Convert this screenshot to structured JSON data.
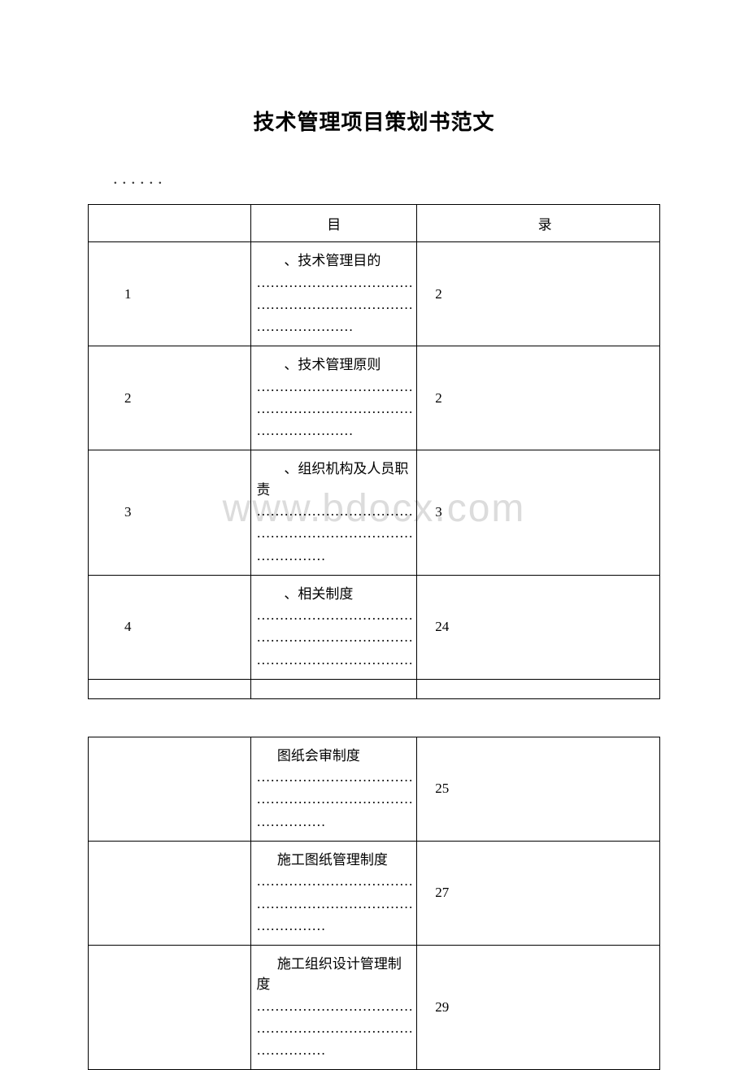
{
  "title": "技术管理项目策划书范文",
  "dots_header": "．．．．．．",
  "watermark": "www.bdocx.com",
  "table1": {
    "header": {
      "col2": "目",
      "col3": "录"
    },
    "rows": [
      {
        "num": "1",
        "label": "、技术管理目的",
        "page": "2",
        "dot_lines": 3
      },
      {
        "num": "2",
        "label": "、技术管理原则",
        "page": "2",
        "dot_lines": 3
      },
      {
        "num": "3",
        "label": "、组织机构及人员职责",
        "page": "3",
        "dot_lines": 3
      },
      {
        "num": "4",
        "label": "、相关制度",
        "page": "24",
        "dot_lines": 3
      }
    ]
  },
  "table2": {
    "rows": [
      {
        "num": "",
        "label": "图纸会审制度",
        "page": "25",
        "dot_lines": 3,
        "last_short": true
      },
      {
        "num": "",
        "label": "施工图纸管理制度",
        "page": "27",
        "dot_lines": 3,
        "last_short": true
      },
      {
        "num": "",
        "label": "施工组织设计管理制度",
        "page": "29",
        "dot_lines": 3,
        "last_short": true
      }
    ]
  },
  "dots_full": "…………………………………",
  "dots_short": "……………",
  "dots_med": "…………………",
  "colors": {
    "background": "#ffffff",
    "border": "#000000",
    "text": "#000000",
    "watermark": "#dcdcdc"
  },
  "fonts": {
    "title_size": 26,
    "body_size": 17,
    "watermark_size": 48
  }
}
